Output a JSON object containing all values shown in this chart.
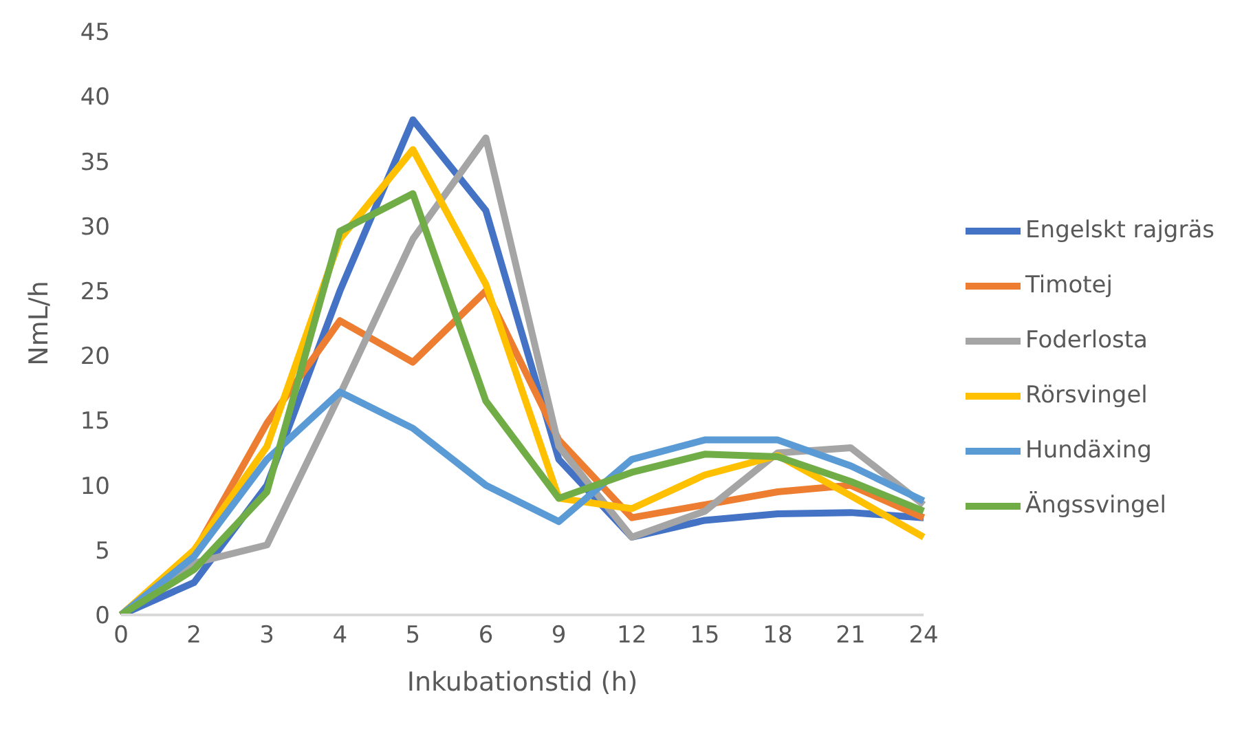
{
  "chart_data": {
    "type": "line",
    "xlabel": "Inkubationstid (h)",
    "ylabel": "NmL/h",
    "categories": [
      "0",
      "2",
      "3",
      "4",
      "5",
      "6",
      "9",
      "12",
      "15",
      "18",
      "21",
      "24"
    ],
    "ylim": [
      0,
      45
    ],
    "yticks": [
      0,
      5,
      10,
      15,
      20,
      25,
      30,
      35,
      40,
      45
    ],
    "grid": false,
    "legend": "right",
    "marker": "none",
    "line_style": "solid",
    "series": [
      {
        "name": "Engelskt rajgräs",
        "color": "#4472c4",
        "values": [
          0,
          2.5,
          10,
          25,
          38.2,
          31.2,
          12,
          6,
          7.3,
          7.8,
          7.9,
          7.5
        ]
      },
      {
        "name": "Timotej",
        "color": "#ed7d31",
        "values": [
          0,
          4.8,
          14.8,
          22.7,
          19.5,
          25,
          13.5,
          7.5,
          8.5,
          9.5,
          10,
          7.5
        ]
      },
      {
        "name": "Foderlosta",
        "color": "#a5a5a5",
        "values": [
          0,
          4,
          5.4,
          17,
          29,
          36.8,
          13,
          6,
          8,
          12.5,
          12.9,
          8.5
        ]
      },
      {
        "name": "Rörsvingel",
        "color": "#ffc000",
        "values": [
          0,
          5,
          13,
          29,
          35.9,
          25.5,
          9,
          8.2,
          10.8,
          12.3,
          9.2,
          6
        ]
      },
      {
        "name": "Hundäxing",
        "color": "#5b9bd5",
        "values": [
          0,
          4.5,
          12,
          17.2,
          14.4,
          10,
          7.2,
          12,
          13.5,
          13.5,
          11.5,
          8.8
        ]
      },
      {
        "name": "Ängssvingel",
        "color": "#70ad47",
        "values": [
          0,
          3.5,
          9.5,
          29.6,
          32.5,
          16.5,
          9,
          11,
          12.4,
          12.2,
          10.3,
          8
        ]
      }
    ]
  }
}
